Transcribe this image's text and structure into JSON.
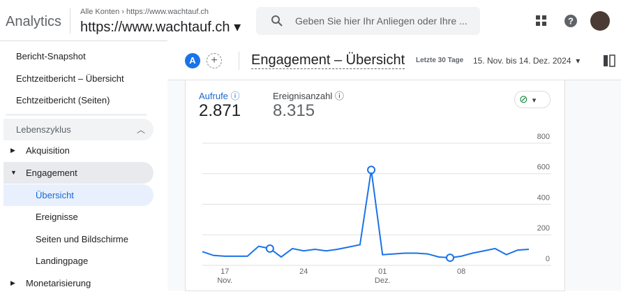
{
  "header": {
    "product": "Analytics",
    "breadcrumb_root": "Alle Konten",
    "breadcrumb_property": "https://www.wachtauf.ch",
    "property": "https://www.wachtauf.ch",
    "search_placeholder": "Geben Sie hier Ihr Anliegen oder Ihre ..."
  },
  "sidebar": {
    "items": [
      "Bericht-Snapshot",
      "Echtzeitbericht – Übersicht",
      "Echtzeitbericht (Seiten)"
    ],
    "section": "Lebenszyklus",
    "nav": [
      "Akquisition",
      "Engagement",
      "Übersicht",
      "Ereignisse",
      "Seiten und Bildschirme",
      "Landingpage",
      "Monetarisierung"
    ]
  },
  "report": {
    "badge": "A",
    "title": "Engagement – Übersicht",
    "range_label": "Letzte 30 Tage",
    "range": "15. Nov. bis 14. Dez. 2024"
  },
  "metrics": [
    {
      "name": "Aufrufe",
      "value": "2.871"
    },
    {
      "name": "Ereignisanzahl",
      "value": "8.315"
    }
  ],
  "chart_data": {
    "type": "line",
    "color": "#1a73e8",
    "categories": [
      null,
      null,
      "17 Nov.",
      null,
      null,
      null,
      null,
      null,
      null,
      "24",
      null,
      null,
      null,
      null,
      null,
      null,
      "01 Dez.",
      null,
      null,
      null,
      null,
      null,
      null,
      "08",
      null,
      null,
      null,
      null,
      null,
      null
    ],
    "values": [
      90,
      65,
      60,
      60,
      60,
      125,
      110,
      55,
      110,
      95,
      105,
      95,
      105,
      120,
      135,
      625,
      70,
      75,
      80,
      80,
      75,
      55,
      50,
      60,
      80,
      95,
      110,
      70,
      100,
      105
    ],
    "markers": [
      6,
      15,
      22
    ],
    "ylim": [
      0,
      800
    ],
    "yticks": [
      0,
      200,
      400,
      600,
      800
    ],
    "grid": true
  }
}
